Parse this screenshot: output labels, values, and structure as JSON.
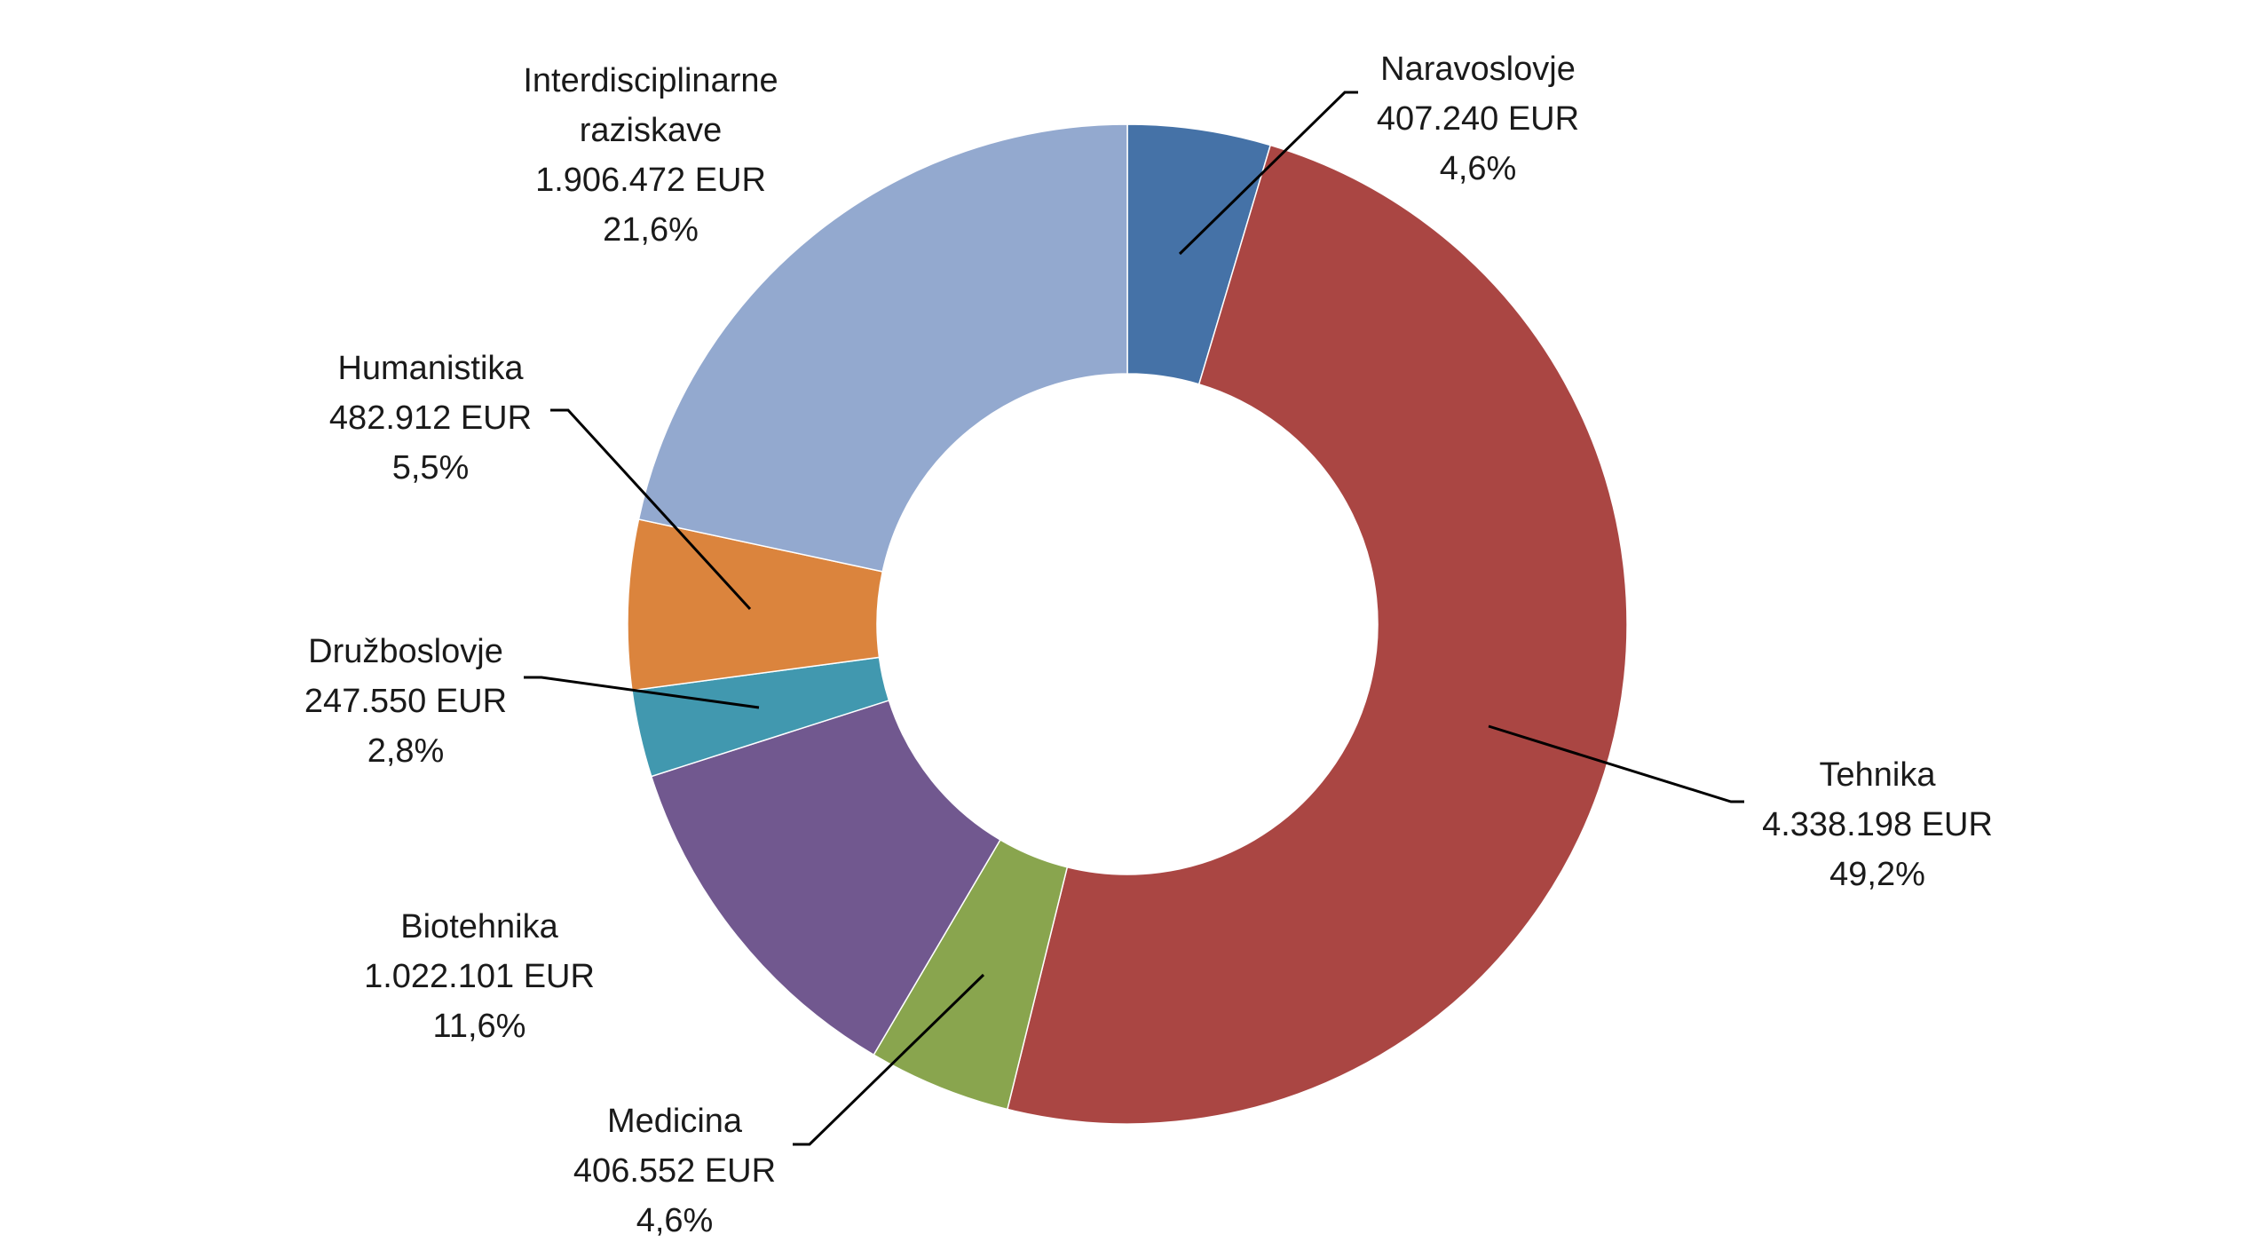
{
  "chart_data": {
    "type": "pie",
    "variant": "donut",
    "title": "",
    "currency": "EUR",
    "legend": "none",
    "slices": [
      {
        "category": "Naravoslovje",
        "value_text": "407.240 EUR",
        "percent_text": "4,6%",
        "value": 407240,
        "percent": 4.6,
        "color": "#4572A7"
      },
      {
        "category": "Tehnika",
        "value_text": "4.338.198 EUR",
        "percent_text": "49,2%",
        "value": 4338198,
        "percent": 49.2,
        "color": "#AA4643"
      },
      {
        "category": "Medicina",
        "value_text": "406.552 EUR",
        "percent_text": "4,6%",
        "value": 406552,
        "percent": 4.6,
        "color": "#89A54E"
      },
      {
        "category": "Biotehnika",
        "value_text": "1.022.101 EUR",
        "percent_text": "11,6%",
        "value": 1022101,
        "percent": 11.6,
        "color": "#71588F"
      },
      {
        "category": "Družboslovje",
        "value_text": "247.550 EUR",
        "percent_text": "2,8%",
        "value": 247550,
        "percent": 2.8,
        "color": "#4198AF"
      },
      {
        "category": "Humanistika",
        "value_text": "482.912 EUR",
        "percent_text": "5,5%",
        "value": 482912,
        "percent": 5.5,
        "color": "#DB843D"
      },
      {
        "category": "Interdisciplinarne raziskave",
        "category_lines": [
          "Interdisciplinarne",
          "raziskave"
        ],
        "value_text": "1.906.472 EUR",
        "percent_text": "21,6%",
        "value": 1906472,
        "percent": 21.6,
        "color": "#93A9CF"
      }
    ]
  }
}
